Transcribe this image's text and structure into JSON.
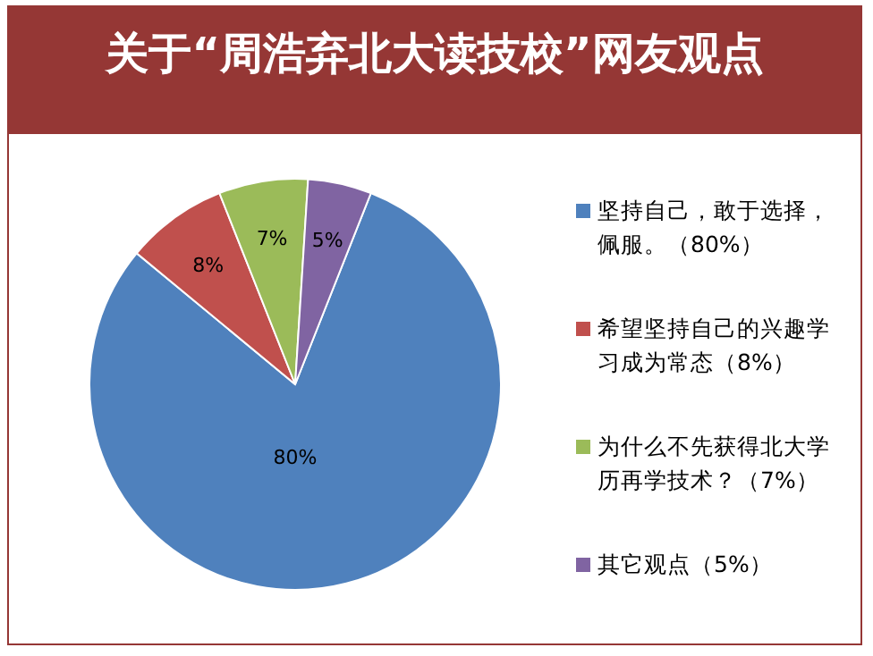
{
  "chart_data": {
    "type": "pie",
    "title": "关于“周浩弃北大读技校”网友观点",
    "categories": [
      "坚持自己，敢于选择，佩服。（80%）",
      "希望坚持自己的兴趣学习成为常态（8%）",
      "为什么不先获得北大学历再学技术？（7%）",
      "其它观点（5%）"
    ],
    "values": [
      80,
      8,
      7,
      5
    ],
    "colors": [
      "#4f81bd",
      "#c0504d",
      "#9bbb59",
      "#8064a2"
    ],
    "value_labels": [
      "80%",
      "8%",
      "7%",
      "5%"
    ],
    "legend": "right"
  }
}
